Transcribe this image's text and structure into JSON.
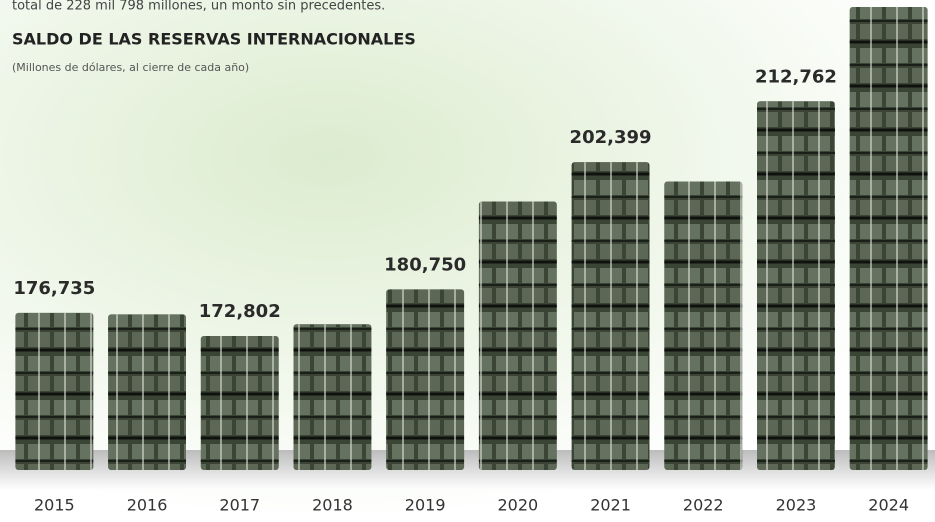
{
  "chart_data": {
    "type": "bar",
    "lead": "total de 228 mil 798 millones, un monto sin precedentes.",
    "title": "SALDO DE LAS RESERVAS INTERNACIONALES",
    "subtitle": "(Millones de dólares, al cierre de cada año)",
    "categories": [
      "2015",
      "2016",
      "2017",
      "2018",
      "2019",
      "2020",
      "2021",
      "2022",
      "2023",
      "2024"
    ],
    "values": [
      176735,
      176500,
      172802,
      174800,
      180750,
      195700,
      202399,
      199100,
      212762,
      228800
    ],
    "value_labels": [
      "176,735",
      null,
      "172,802",
      null,
      "180,750",
      null,
      "202,399",
      null,
      "212,762",
      null
    ],
    "color": "#3b4536",
    "ylim": [
      150000,
      230000
    ]
  }
}
